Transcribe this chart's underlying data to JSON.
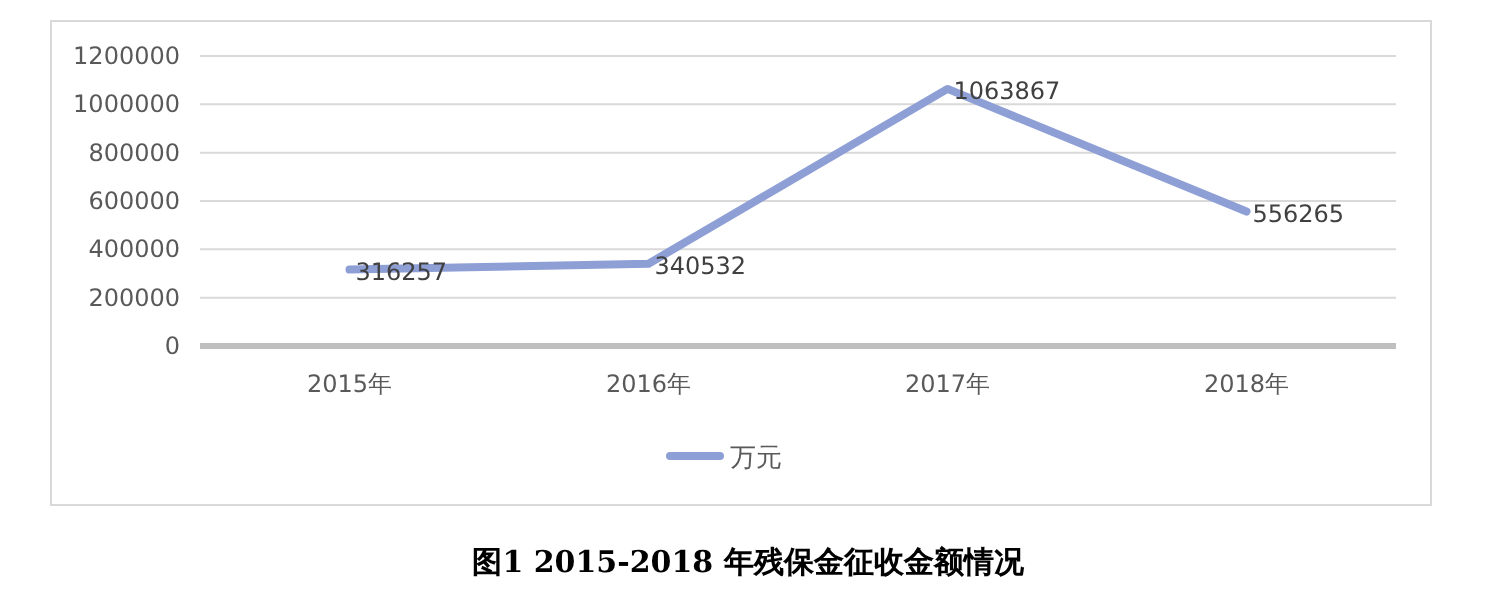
{
  "chart_data": {
    "type": "line",
    "title": "图1  2015-2018 年残保金征收金额情况",
    "categories": [
      "2015年",
      "2016年",
      "2017年",
      "2018年"
    ],
    "series": [
      {
        "name": "万元",
        "color": "#8e9fd6",
        "values": [
          316257,
          340532,
          1063867,
          556265
        ]
      }
    ],
    "ylim": [
      0,
      1200000
    ],
    "yticks": [
      0,
      200000,
      400000,
      600000,
      800000,
      1000000,
      1200000
    ],
    "grid": "y",
    "legend": "bottom",
    "data_labels": true,
    "marker": "none",
    "line_style": "solid"
  }
}
